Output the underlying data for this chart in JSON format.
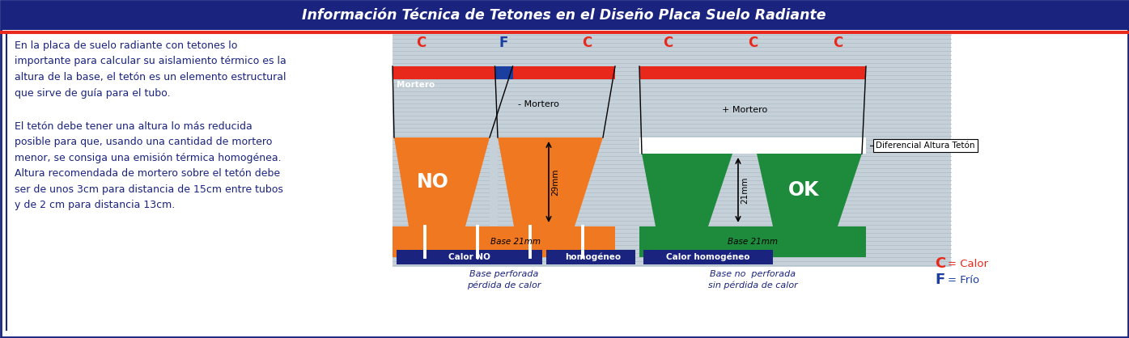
{
  "title": "Información Técnica de Tetones en el Diseño Placa Suelo Radiante",
  "title_bg": "#1a237e",
  "title_color": "#ffffff",
  "border_color": "#1a237e",
  "bg_color": "#ffffff",
  "text_paragraph1": "En la placa de suelo radiante con tetones lo\nimportante para calcular su aislamiento térmico es la\naltura de la base, el tetón es un elemento estructural\nque sirve de guía para el tubo.",
  "text_paragraph2": "El tetón debe tener una altura lo más reducida\nposible para que, usando una cantidad de mortero\nmenor, se consiga una emisión térmica homogénea.\nAltura recomendada de mortero sobre el tetón debe\nser de unos 3cm para distancia de 15cm entre tubos\ny de 2 cm para distancia 13cm.",
  "text_color": "#1a237e",
  "orange_color": "#f07820",
  "green_color": "#1e8a3c",
  "gray_stripe_light": "#c8d4da",
  "gray_stripe_dark": "#b0bfc8",
  "dark_blue": "#1a237e",
  "red_color": "#e8281a",
  "blue_color": "#1a3fa0",
  "mortar_bg": "#c5d0d8",
  "diagram_right_bg": "#c8d4da",
  "white_area": "#ffffff"
}
